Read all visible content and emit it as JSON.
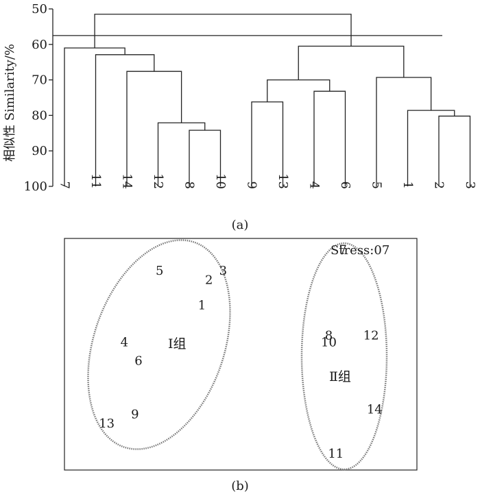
{
  "chart_data": [
    {
      "type": "dendrogram",
      "caption": "(a)",
      "ylabel": "相似性 Similarity/%",
      "yticks": [
        "50",
        "60",
        "70",
        "80",
        "90",
        "100"
      ],
      "ylim": [
        50,
        100
      ],
      "leaf_order": [
        "7",
        "11",
        "14",
        "12",
        "8",
        "10",
        "9",
        "13",
        "4",
        "6",
        "5",
        "1",
        "2",
        "3"
      ],
      "cut_level": 57.5,
      "merges": [
        {
          "left": "2",
          "right": "3",
          "similarity": 80.2
        },
        {
          "left": "1",
          "right": "2+3",
          "similarity": 78.6
        },
        {
          "left": "5",
          "right": "1+2+3",
          "similarity": 69.3
        },
        {
          "left": "4",
          "right": "6",
          "similarity": 73.2
        },
        {
          "left": "9",
          "right": "13",
          "similarity": 76.2
        },
        {
          "left": "9+13",
          "right": "4+6",
          "similarity": 70.0
        },
        {
          "left": "9+13+4+6",
          "right": "5+1+2+3",
          "similarity": 60.5
        },
        {
          "left": "8",
          "right": "10",
          "similarity": 84.2
        },
        {
          "left": "12",
          "right": "8+10",
          "similarity": 82.1
        },
        {
          "left": "14",
          "right": "12+8+10",
          "similarity": 67.6
        },
        {
          "left": "11",
          "right": "14+12+8+10",
          "similarity": 62.9
        },
        {
          "left": "7",
          "right": "11+14+12+8+10",
          "similarity": 61.0
        },
        {
          "left": "7+11+14+12+8+10",
          "right": "9+13+4+6+5+1+2+3",
          "similarity": 51.5
        }
      ]
    },
    {
      "type": "scatter",
      "caption": "(b)",
      "stress_label": "Stress:07",
      "groups": [
        {
          "label": "Ⅰ组",
          "members": [
            "5",
            "3",
            "2",
            "1",
            "4",
            "6",
            "9",
            "13"
          ]
        },
        {
          "label": "Ⅱ组",
          "members": [
            "7",
            "8",
            "10",
            "12",
            "14",
            "11"
          ]
        }
      ],
      "points": [
        {
          "label": "5",
          "x": 0.27,
          "y": 0.86
        },
        {
          "label": "3",
          "x": 0.45,
          "y": 0.86
        },
        {
          "label": "2",
          "x": 0.41,
          "y": 0.82
        },
        {
          "label": "1",
          "x": 0.39,
          "y": 0.71
        },
        {
          "label": "4",
          "x": 0.17,
          "y": 0.55
        },
        {
          "label": "6",
          "x": 0.21,
          "y": 0.47
        },
        {
          "label": "9",
          "x": 0.2,
          "y": 0.24
        },
        {
          "label": "13",
          "x": 0.12,
          "y": 0.2
        },
        {
          "label": "7",
          "x": 0.79,
          "y": 0.95
        },
        {
          "label": "8",
          "x": 0.75,
          "y": 0.58
        },
        {
          "label": "10",
          "x": 0.75,
          "y": 0.55
        },
        {
          "label": "12",
          "x": 0.87,
          "y": 0.58
        },
        {
          "label": "14",
          "x": 0.88,
          "y": 0.26
        },
        {
          "label": "11",
          "x": 0.77,
          "y": 0.07
        }
      ]
    }
  ]
}
